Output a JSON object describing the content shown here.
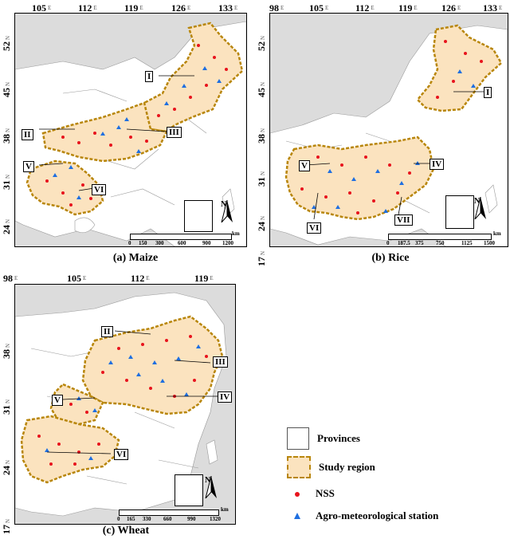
{
  "panels": {
    "maize": {
      "caption": "(a) Maize",
      "lon_ticks": [
        "105",
        "112",
        "119",
        "126",
        "133"
      ],
      "lat_ticks": [
        "52",
        "45",
        "38",
        "31",
        "24"
      ],
      "zones": [
        "I",
        "II",
        "III",
        "V",
        "VI"
      ],
      "scale_labels": [
        "0",
        "150",
        "300",
        "600",
        "900",
        "1200"
      ],
      "scale_unit": "km"
    },
    "rice": {
      "caption": "(b) Rice",
      "lon_ticks": [
        "98",
        "105",
        "112",
        "119",
        "126",
        "133"
      ],
      "lat_ticks": [
        "52",
        "45",
        "38",
        "31",
        "24",
        "17"
      ],
      "zones": [
        "I",
        "IV",
        "V",
        "VI",
        "VII"
      ],
      "scale_labels": [
        "0",
        "187.5",
        "375",
        "750",
        "1125",
        "1500"
      ],
      "scale_unit": "km"
    },
    "wheat": {
      "caption": "(c) Wheat",
      "lon_ticks": [
        "98",
        "105",
        "112",
        "119"
      ],
      "lat_ticks": [
        "38",
        "31",
        "24",
        "17"
      ],
      "zones": [
        "II",
        "III",
        "IV",
        "V",
        "VI"
      ],
      "scale_labels": [
        "0",
        "165",
        "330",
        "660",
        "990",
        "1320"
      ],
      "scale_unit": "km"
    }
  },
  "axis_suffix": {
    "lon": "E",
    "lat": "N"
  },
  "north_label": "N",
  "legend": {
    "provinces": "Provinces",
    "study_region": "Study region",
    "nss": "NSS",
    "agro": "Agro-meteorological station"
  },
  "colors": {
    "study_fill": "#fbe3bf",
    "study_border": "#b8860b",
    "nss": "#e8141d",
    "agro": "#1f6fe0",
    "sea": "#dcdcdc",
    "land": "#ffffff"
  }
}
